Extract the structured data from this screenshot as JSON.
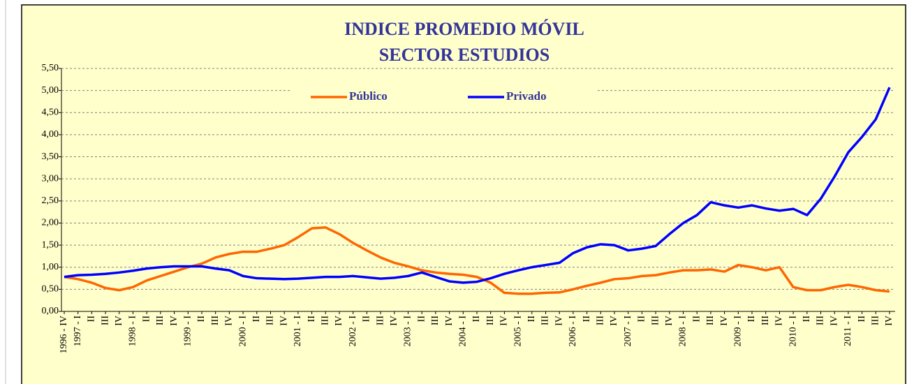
{
  "chart_data": {
    "type": "line",
    "title": [
      "INDICE PROMEDIO MÓVIL",
      "SECTOR ESTUDIOS"
    ],
    "categories": [
      "1996 - IV",
      "1997 - I",
      "II",
      "III",
      "IV",
      "1998 - I",
      "II",
      "III",
      "IV",
      "1999 - I",
      "II",
      "III",
      "IV",
      "2000 - I",
      "II",
      "III",
      "IV",
      "2001 - I",
      "II",
      "III",
      "IV",
      "2002 - I",
      "II",
      "III",
      "IV",
      "2003 - I",
      "II",
      "III",
      "IV",
      "2004 - I",
      "II",
      "III",
      "IV",
      "2005 - I",
      "II",
      "III",
      "IV",
      "2006 - I",
      "II",
      "III",
      "IV",
      "2007 - I",
      "II",
      "III",
      "IV",
      "2008 - I",
      "II",
      "III",
      "IV",
      "2009 - I",
      "II",
      "III",
      "IV",
      "2010 - I",
      "II",
      "III",
      "IV",
      "2011 - I",
      "II",
      "III",
      "IV"
    ],
    "series": [
      {
        "name": "Público",
        "color": "#ff6600",
        "values": [
          0.78,
          0.73,
          0.65,
          0.53,
          0.48,
          0.55,
          0.7,
          0.8,
          0.9,
          1.0,
          1.08,
          1.22,
          1.3,
          1.35,
          1.35,
          1.42,
          1.5,
          1.68,
          1.88,
          1.9,
          1.75,
          1.55,
          1.38,
          1.22,
          1.1,
          1.02,
          0.93,
          0.88,
          0.85,
          0.83,
          0.78,
          0.65,
          0.42,
          0.4,
          0.4,
          0.42,
          0.43,
          0.5,
          0.58,
          0.65,
          0.73,
          0.75,
          0.8,
          0.82,
          0.88,
          0.93,
          0.93,
          0.95,
          0.9,
          1.05,
          1.0,
          0.93,
          1.0,
          0.55,
          0.48,
          0.48,
          0.55,
          0.6,
          0.55,
          0.48,
          0.45
        ]
      },
      {
        "name": "Privado",
        "color": "#0000ff",
        "values": [
          0.78,
          0.82,
          0.83,
          0.85,
          0.88,
          0.92,
          0.97,
          1.0,
          1.02,
          1.02,
          1.02,
          0.97,
          0.93,
          0.8,
          0.75,
          0.74,
          0.73,
          0.74,
          0.76,
          0.78,
          0.78,
          0.8,
          0.77,
          0.74,
          0.76,
          0.8,
          0.88,
          0.78,
          0.68,
          0.65,
          0.67,
          0.75,
          0.85,
          0.93,
          1.0,
          1.05,
          1.1,
          1.32,
          1.45,
          1.52,
          1.5,
          1.38,
          1.42,
          1.48,
          1.75,
          2.0,
          2.18,
          2.47,
          2.4,
          2.35,
          2.4,
          2.33,
          2.28,
          2.32,
          2.18,
          2.55,
          3.05,
          3.6,
          3.95,
          4.35,
          5.07
        ]
      }
    ],
    "ylim": [
      0,
      5.5
    ],
    "yticks": [
      {
        "value": 0,
        "label": "0,00"
      },
      {
        "value": 0.5,
        "label": "0,50"
      },
      {
        "value": 1,
        "label": "1,00"
      },
      {
        "value": 1.5,
        "label": "1,50"
      },
      {
        "value": 2,
        "label": "2,00"
      },
      {
        "value": 2.5,
        "label": "2,50"
      },
      {
        "value": 3,
        "label": "3,00"
      },
      {
        "value": 3.5,
        "label": "3,50"
      },
      {
        "value": 4,
        "label": "4,00"
      },
      {
        "value": 4.5,
        "label": "4,50"
      },
      {
        "value": 5,
        "label": "5,00"
      },
      {
        "value": 5.5,
        "label": "5,50"
      }
    ],
    "grid": true
  }
}
